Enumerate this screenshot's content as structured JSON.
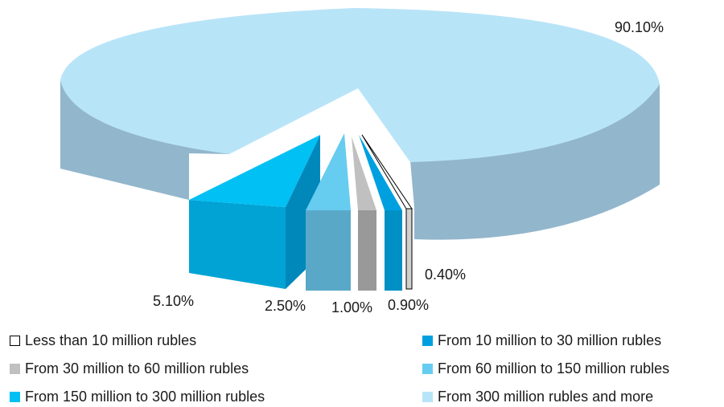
{
  "chart_data": {
    "type": "pie",
    "style": "3d-exploded",
    "categories": [
      "Less than 10 million rubles",
      "From 10 million to 30 million rubles",
      "From 30 million to 60 million rubles",
      "From 60 million to 150 million rubles",
      "From 150 million to 300 million rubles",
      "From 300 million rubles and more"
    ],
    "values": [
      0.4,
      0.9,
      1.0,
      2.5,
      5.1,
      90.1
    ],
    "data_labels": [
      "0.40%",
      "0.90%",
      "1.00%",
      "2.50%",
      "5.10%",
      "90.10%"
    ],
    "colors": [
      "#ffffff",
      "#00a0e0",
      "#c0c0c0",
      "#66ccf0",
      "#00c0f4",
      "#b8e4f8"
    ],
    "legend_position": "bottom"
  }
}
